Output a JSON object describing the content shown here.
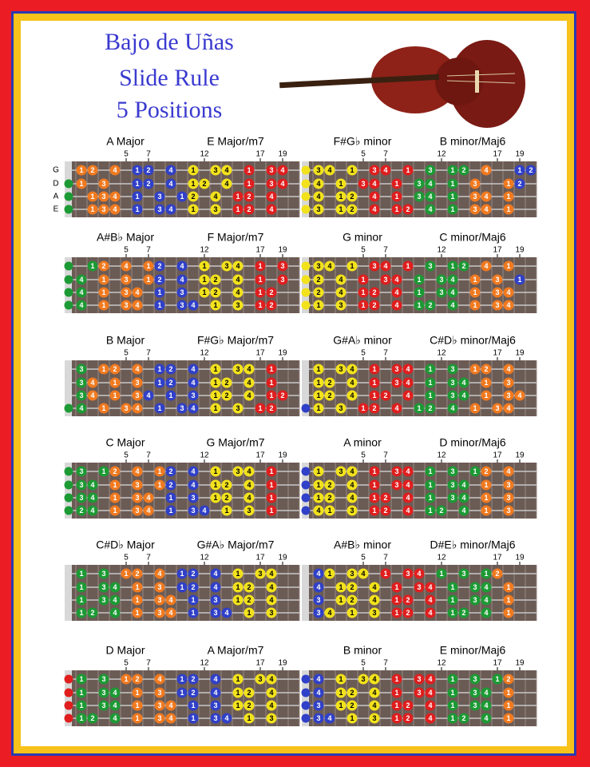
{
  "header": {
    "title_lines": [
      "Bajo de Uñas",
      "Slide Rule",
      "5 Positions"
    ]
  },
  "string_names": [
    "G",
    "D",
    "A",
    "E"
  ],
  "fret_markers": [
    5,
    7,
    12,
    17,
    19
  ],
  "palette": {
    "o": "#f07a20",
    "b": "#3040c8",
    "y": "#f2e21c",
    "r": "#e01e1e",
    "g": "#1c9a34"
  },
  "boards": [
    {
      "titles": [
        "A Major",
        "E Major/m7"
      ],
      "open": ".ggg",
      "zones": "ooooobbbbbyyyyrrrrrr",
      "strings": [
        "12.4.12.4.1.34.1.34.",
        "1.3..12.4.12.4.1.34.",
        ".134.1.3.12.4.12.4..",
        ".134.1.34.1.3.12.4.."
      ]
    },
    {
      "titles": [
        "F#G♭ minor",
        "B minor/Maj6"
      ],
      "open": "yyyy",
      "zones": "yyyyrrrrrgggggoooobb",
      "strings": [
        "34.1.34.1.3.12.4..12",
        "4.1.34.1.34.1.3..12.",
        "4.12.4.1.34.1.34.1..",
        "3.12.4.12.4.1.34.1.."
      ]
    },
    {
      "titles": [
        "A#B♭ Major",
        "F Major/m7"
      ],
      "open": "gggg",
      "zones": "ggooooobbbbyyyyyrrrr",
      "strings": [
        ".12.4.12.4.1.34.1.3.",
        "4.1.3.12.4.12.4.1.3.",
        "4.1.34.1.3.12.4.12..",
        "4.1.34.1.34.1.3.12.."
      ]
    },
    {
      "titles": [
        "G minor",
        "C minor/Maj6"
      ],
      "open": "yyyy",
      "zones": "yyyyrrrrrgggggoooobb",
      "strings": [
        "34.1.34.1.3.12.4.1..",
        "2.4.1.34.1.34.1.3.1.",
        "2.4.12.4.1.34.1.34..",
        "1.3.12.4.12.4.1.34.."
      ]
    },
    {
      "titles": [
        "B Major",
        "F#G♭ Major/m7"
      ],
      "open": "...g",
      "zones": "gooooobbbbbyyyyyrrrr",
      "strings": [
        "3.12.4.12.4.1.34.1..",
        "34.1.3.12.4.12.4.1..",
        "34.1.34.1.3.12.4.12.",
        "4.1.34.1.34.1.3.12.."
      ]
    },
    {
      "titles": [
        "G#A♭ minor",
        "C#D♭ minor/Maj6"
      ],
      "open": "...b",
      "zones": "yyyyrrrrrgggggoooooo",
      "strings": [
        "1.34.1.34.1.3.12.4..",
        "12.4.1.34.1.34.1.3..",
        "12.4.12.4.1.34.1.34.",
        "1.3.12.4.12.4.1.34.."
      ]
    },
    {
      "titles": [
        "C Major",
        "G Major/m7"
      ],
      "open": "gggg",
      "zones": "gggooooobbbbyyyyyrrr",
      "strings": [
        "3.12.4.12.4.1.34.1..",
        "34.1.3.12.4.12.4.1..",
        "34.1.34.1.3.12.4.1..",
        "24.1.34.1.34.1.3.1.."
      ]
    },
    {
      "titles": [
        "A minor",
        "D minor/Maj6"
      ],
      "open": "bbbb",
      "zones": "yyyyyrrrrrgggggooooo",
      "strings": [
        "1.34.1.34.1.3.12.4..",
        "12.4.1.34.1.34.1.3..",
        "12.4.12.4.1.34.1.3..",
        "41.3.12.4.12.4.1.3.."
      ]
    },
    {
      "titles": [
        "C#D♭ Major",
        "G#A♭ Major/m7"
      ],
      "open": "....",
      "zones": "ggggooooobbbbbyyyyyy",
      "strings": [
        "1.3.12.4.12.4.1.34..",
        "1.34.1.3.12.4.12.4..",
        "1.34.1.34.1.3.12.4..",
        "12.4.1.34.1.34.1.3.."
      ]
    },
    {
      "titles": [
        "A#B♭ minor",
        "D#E♭ minor/Maj6"
      ],
      "open": "....",
      "zones": "byyyyyrrrrrgggggoooo",
      "strings": [
        "41.34.1.34.1.3.12...",
        "4.12.4.1.34.1.34.1..",
        "3.12.4.12.4.1.34.1..",
        "34.1.3.12.4.12.4.1.."
      ]
    },
    {
      "titles": [
        "D Major",
        "A Major/m7"
      ],
      "open": "rrrr",
      "zones": "ggggooooobbbbbyyyyyy",
      "strings": [
        "1.3.12.4.12.4.1.34..",
        "1.34.1.3.12.4.12.4..",
        "1.34.1.34.1.3.12.4..",
        "12.4.1.34.1.34.1.3.."
      ]
    },
    {
      "titles": [
        "B minor",
        "E minor/Maj6"
      ],
      "open": "bbbb",
      "zones": "bbyyyyyrrrrrgggggooo",
      "strings": [
        "4.1.34.1.34.1.3.12..",
        "4.12.4.1.34.1.34.1..",
        "3.12.4.12.4.1.34.1..",
        "34.1.3.12.4.12.4.1.."
      ]
    }
  ]
}
